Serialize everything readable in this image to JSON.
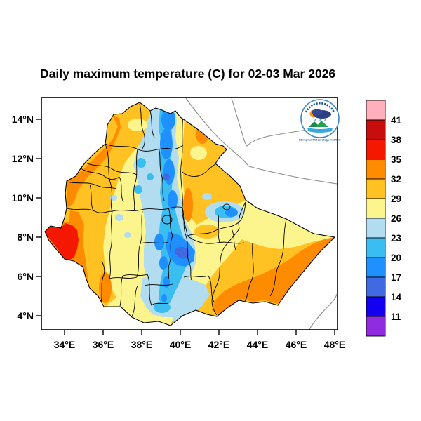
{
  "title": "Daily maximum temperature (C) for 02-03 Mar 2026",
  "chart_data": {
    "type": "heatmap",
    "subtype": "filled-contour temperature map of Ethiopia",
    "title": "Daily maximum temperature (C) for 02-03 Mar 2026",
    "units": "degrees C",
    "x_axis": {
      "tick_labels": [
        "34°E",
        "36°E",
        "38°E",
        "40°E",
        "42°E",
        "44°E",
        "46°E",
        "48°E"
      ],
      "tick_values": [
        34,
        36,
        38,
        40,
        42,
        44,
        46,
        48
      ],
      "range": [
        32.8,
        48.2
      ]
    },
    "y_axis": {
      "tick_labels": [
        "14°N",
        "12°N",
        "10°N",
        "8°N",
        "6°N",
        "4°N"
      ],
      "tick_values": [
        14,
        12,
        10,
        8,
        6,
        4
      ],
      "range": [
        3.3,
        15.1
      ]
    },
    "legend_levels": [
      11,
      14,
      17,
      20,
      23,
      26,
      29,
      32,
      35,
      38,
      41
    ],
    "legend_colors_top_to_bottom": [
      "#FFB0BC",
      "#C80D0D",
      "#F51800",
      "#FF8C00",
      "#FFC222",
      "#FCF48C",
      "#B2DCEF",
      "#3ABEF2",
      "#1E90FF",
      "#4169E1",
      "#1400F0",
      "#8F2CE0"
    ],
    "grid": false,
    "legend_position": "right vertical colorbar",
    "features": [
      {
        "area": "Gambela lowlands, far west (~8°N 33-34°E)",
        "tmax_c": "35-38"
      },
      {
        "area": "Western border belt (Benishangul / West Tigray)",
        "tmax_c": "32-35"
      },
      {
        "area": "Northwest and west plateau flanks",
        "tmax_c": "29-32"
      },
      {
        "area": "North-south highland & rift belt (~38.5-40°E, 14°N to 5°N)",
        "tmax_c": "17-23"
      },
      {
        "area": "Highland cold cores (N Wollo ~11°N 39.2°E; Arsi-Bale ~7°N 39.5-40.5°E)",
        "tmax_c": "14-17"
      },
      {
        "area": "Lake Tana / Gojjam highland spots",
        "tmax_c": "20-26"
      },
      {
        "area": "Harar highlands (~9.3°N 42-43°E)",
        "tmax_c": "17-26"
      },
      {
        "area": "Afar / Danakil northeast lowlands",
        "tmax_c": "29-35"
      },
      {
        "area": "Southeastern Somali lowlands and southern border belt",
        "tmax_c": "32-35"
      },
      {
        "area": "South-central pocket (~5°N 37.5-39°E)",
        "tmax_c": "20-26"
      },
      {
        "area": "Remaining areas",
        "tmax_c": "26-32"
      }
    ]
  },
  "axes": {
    "lat": [
      "14°N",
      "12°N",
      "10°N",
      "8°N",
      "6°N",
      "4°N"
    ],
    "lon": [
      "34°E",
      "36°E",
      "38°E",
      "40°E",
      "42°E",
      "44°E",
      "46°E",
      "48°E"
    ]
  },
  "legend": {
    "labels": [
      "41",
      "38",
      "35",
      "32",
      "29",
      "26",
      "23",
      "20",
      "17",
      "14",
      "11"
    ],
    "colors_top_to_bottom": [
      "#FFB0BC",
      "#C80D0D",
      "#F51800",
      "#FF8C00",
      "#FFC222",
      "#FCF48C",
      "#B2DCEF",
      "#3ABEF2",
      "#1E90FF",
      "#4169E1",
      "#1400F0",
      "#8F2CE0"
    ]
  },
  "logo": {
    "caption": "Ethiopian Meteorology Institute",
    "arc_text_note": "Amharic arc text (illegible at this size)"
  }
}
